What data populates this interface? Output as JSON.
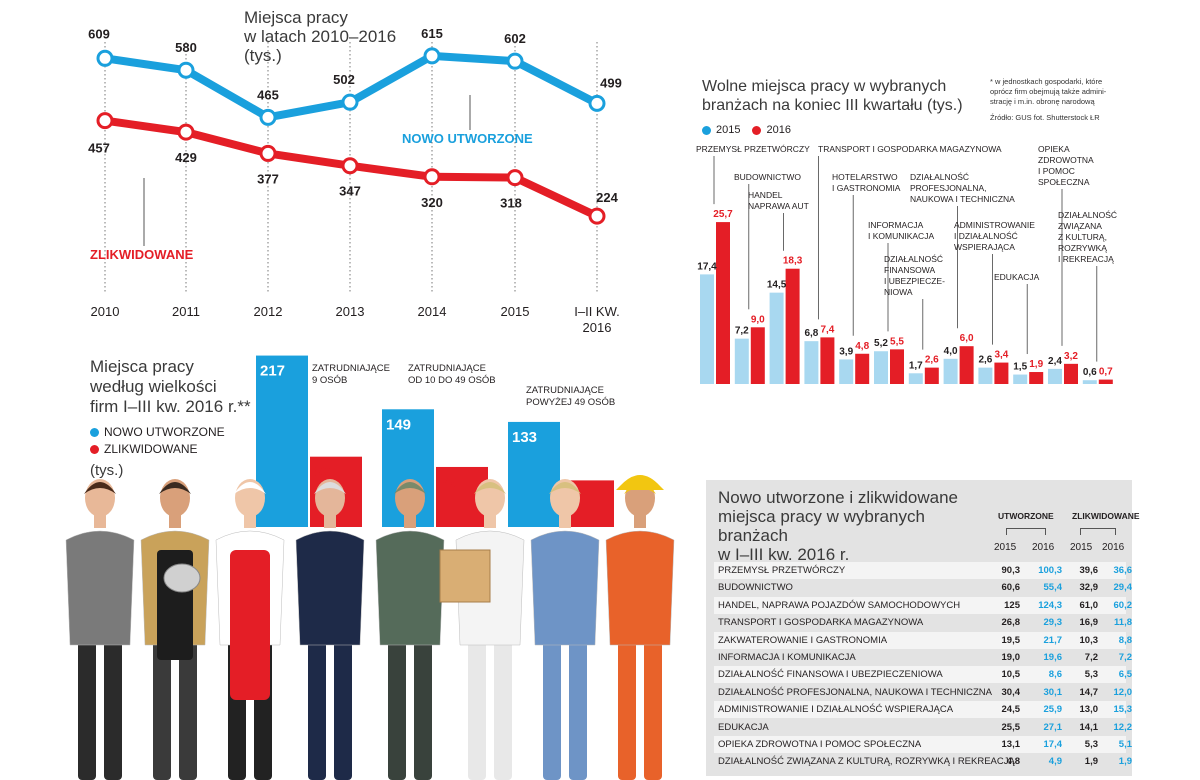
{
  "colors": {
    "blue": "#1aa0dd",
    "blue_light": "#a8d8f0",
    "red": "#e41e26",
    "red_dark": "#b50f16",
    "panel": "#e3e3e3"
  },
  "line_chart": {
    "title_lines": [
      "Miejsca pracy",
      "w latach 2010–2016",
      "(tys.)"
    ],
    "label_new": "NOWO UTWORZONE",
    "label_closed": "ZLIKWIDOWANE"
  },
  "bar_chart": {
    "title_lines": [
      "Wolne miejsca pracy w wybranych",
      "branżach na koniec III kwartału (tys.)"
    ],
    "legend": [
      "2015",
      "2016"
    ],
    "footnote_lines": [
      "* w jednostkach gospodarki, które",
      "oprócz firm obejmują także admini-",
      "strację i m.in. obronę narodową"
    ],
    "source": "Źródło: GUS     fot. Shutterstock    ŁR"
  },
  "firm_chart": {
    "title_lines": [
      "Miejsca pracy",
      "według wielkości",
      "firm I–III kw. 2016 r.**"
    ],
    "legend": [
      "NOWO UTWORZONE",
      "ZLIKWIDOWANE"
    ],
    "unit": "(tys.)"
  },
  "table": {
    "title_lines": [
      "Nowo utworzone i zlikwidowane",
      "miejsca pracy w wybranych branżach",
      "w I–III kw. 2016 r."
    ],
    "group_headers": [
      "UTWORZONE",
      "ZLIKWIDOWANE"
    ],
    "years": [
      "2015",
      "2016",
      "2015",
      "2016"
    ],
    "rows": [
      {
        "label": "PRZEMYSŁ PRZETWÓRCZY",
        "v": [
          "90,3",
          "100,3",
          "39,6",
          "36,6"
        ]
      },
      {
        "label": "BUDOWNICTWO",
        "v": [
          "60,6",
          "55,4",
          "32,9",
          "29,4"
        ]
      },
      {
        "label": "HANDEL, NAPRAWA POJAZDÓW SAMOCHODOWYCH",
        "v": [
          "125",
          "124,3",
          "61,0",
          "60,2"
        ]
      },
      {
        "label": "TRANSPORT I GOSPODARKA MAGAZYNOWA",
        "v": [
          "26,8",
          "29,3",
          "16,9",
          "11,8"
        ]
      },
      {
        "label": "ZAKWATEROWANIE I GASTRONOMIA",
        "v": [
          "19,5",
          "21,7",
          "10,3",
          "8,8"
        ]
      },
      {
        "label": "INFORMACJA I KOMUNIKACJA",
        "v": [
          "19,0",
          "19,6",
          "7,2",
          "7,2"
        ]
      },
      {
        "label": "DZIAŁALNOŚĆ FINANSOWA I UBEZPIECZENIOWA",
        "v": [
          "10,5",
          "8,6",
          "5,3",
          "6,5"
        ]
      },
      {
        "label": "DZIAŁALNOŚĆ PROFESJONALNA, NAUKOWA I TECHNICZNA",
        "v": [
          "30,4",
          "30,1",
          "14,7",
          "12,0"
        ]
      },
      {
        "label": "ADMINISTROWANIE I DZIAŁALNOŚĆ WSPIERAJĄCA",
        "v": [
          "24,5",
          "25,9",
          "13,0",
          "15,3"
        ]
      },
      {
        "label": "EDUKACJA",
        "v": [
          "25,5",
          "27,1",
          "14,1",
          "12,2"
        ]
      },
      {
        "label": "OPIEKA ZDROWOTNA I POMOC SPOŁECZNA",
        "v": [
          "13,1",
          "17,4",
          "5,3",
          "5,1"
        ]
      },
      {
        "label": "DZIAŁALNOŚĆ ZWIĄZANA Z KULTURĄ, ROZRYWKĄ I REKREACJĄ",
        "v": [
          "4,8",
          "4,9",
          "1,9",
          "1,9"
        ]
      }
    ]
  },
  "chart_data": [
    {
      "type": "line",
      "title": "Miejsca pracy w latach 2010–2016 (tys.)",
      "x": [
        "2010",
        "2011",
        "2012",
        "2013",
        "2014",
        "2015",
        "I–II KW. 2016"
      ],
      "series": [
        {
          "name": "NOWO UTWORZONE",
          "values": [
            609,
            580,
            465,
            502,
            615,
            602,
            499
          ]
        },
        {
          "name": "ZLIKWIDOWANE",
          "values": [
            457,
            429,
            377,
            347,
            320,
            318,
            224
          ]
        }
      ]
    },
    {
      "type": "bar",
      "title": "Wolne miejsca pracy w wybranych branżach na koniec III kwartału (tys.)",
      "categories": [
        [
          "PRZEMYSŁ PRZETWÓRCZY"
        ],
        [
          "BUDOWNICTWO"
        ],
        [
          "HANDEL",
          "NAPRAWA AUT"
        ],
        [
          "TRANSPORT I GOSPODARKA MAGAZYNOWA"
        ],
        [
          "HOTELARSTWO",
          "I GASTRONOMIA"
        ],
        [
          "INFORMACJA",
          "I KOMUNIKACJA"
        ],
        [
          "DZIAŁALNOŚĆ",
          "FINANSOWA",
          "I UBEZPIECZE-",
          "NIOWA"
        ],
        [
          "DZIAŁALNOŚĆ",
          "PROFESJONALNA,",
          "NAUKOWA I TECHNICZNA"
        ],
        [
          "ADMINISTROWANIE",
          "I DZIAŁALNOŚĆ",
          "WSPIERAJĄCA"
        ],
        [
          "EDUKACJA"
        ],
        [
          "OPIEKA",
          "ZDROWOTNA",
          "I POMOC",
          "SPOŁECZNA"
        ],
        [
          "DZIAŁALNOŚĆ",
          "ZWIĄZANA",
          "Z KULTURĄ,",
          "ROZRYWKĄ",
          "I REKREACJĄ"
        ]
      ],
      "series": [
        {
          "name": "2015",
          "values": [
            17.4,
            7.2,
            14.5,
            6.8,
            3.9,
            5.2,
            1.7,
            4.0,
            2.6,
            1.5,
            2.4,
            0.6
          ],
          "labels": [
            "17,4",
            "7,2",
            "14,5",
            "6,8",
            "3,9",
            "5,2",
            "1,7",
            "4,0",
            "2,6",
            "1,5",
            "2,4",
            "0,6"
          ]
        },
        {
          "name": "2016",
          "values": [
            25.7,
            9.0,
            18.3,
            7.4,
            4.8,
            5.5,
            2.6,
            6.0,
            3.4,
            1.9,
            3.2,
            0.7
          ],
          "labels": [
            "25,7",
            "9,0",
            "18,3",
            "7,4",
            "4,8",
            "5,5",
            "2,6",
            "6,0",
            "3,4",
            "1,9",
            "3,2",
            "0,7"
          ]
        }
      ]
    },
    {
      "type": "bar",
      "title": "Miejsca pracy według wielkości firm I–III kw. 2016 r.**",
      "categories": [
        [
          "ZATRUDNIAJĄCE",
          "9 OSÓB"
        ],
        [
          "ZATRUDNIAJĄCE",
          "OD 10 DO 49 OSÓB"
        ],
        [
          "ZATRUDNIAJĄCE",
          "POWYŻEJ 49 OSÓB"
        ]
      ],
      "series": [
        {
          "name": "NOWO UTWORZONE",
          "values": [
            217,
            149,
            133
          ]
        },
        {
          "name": "ZLIKWIDOWANE",
          "values": [
            89,
            76,
            59
          ]
        }
      ]
    }
  ]
}
